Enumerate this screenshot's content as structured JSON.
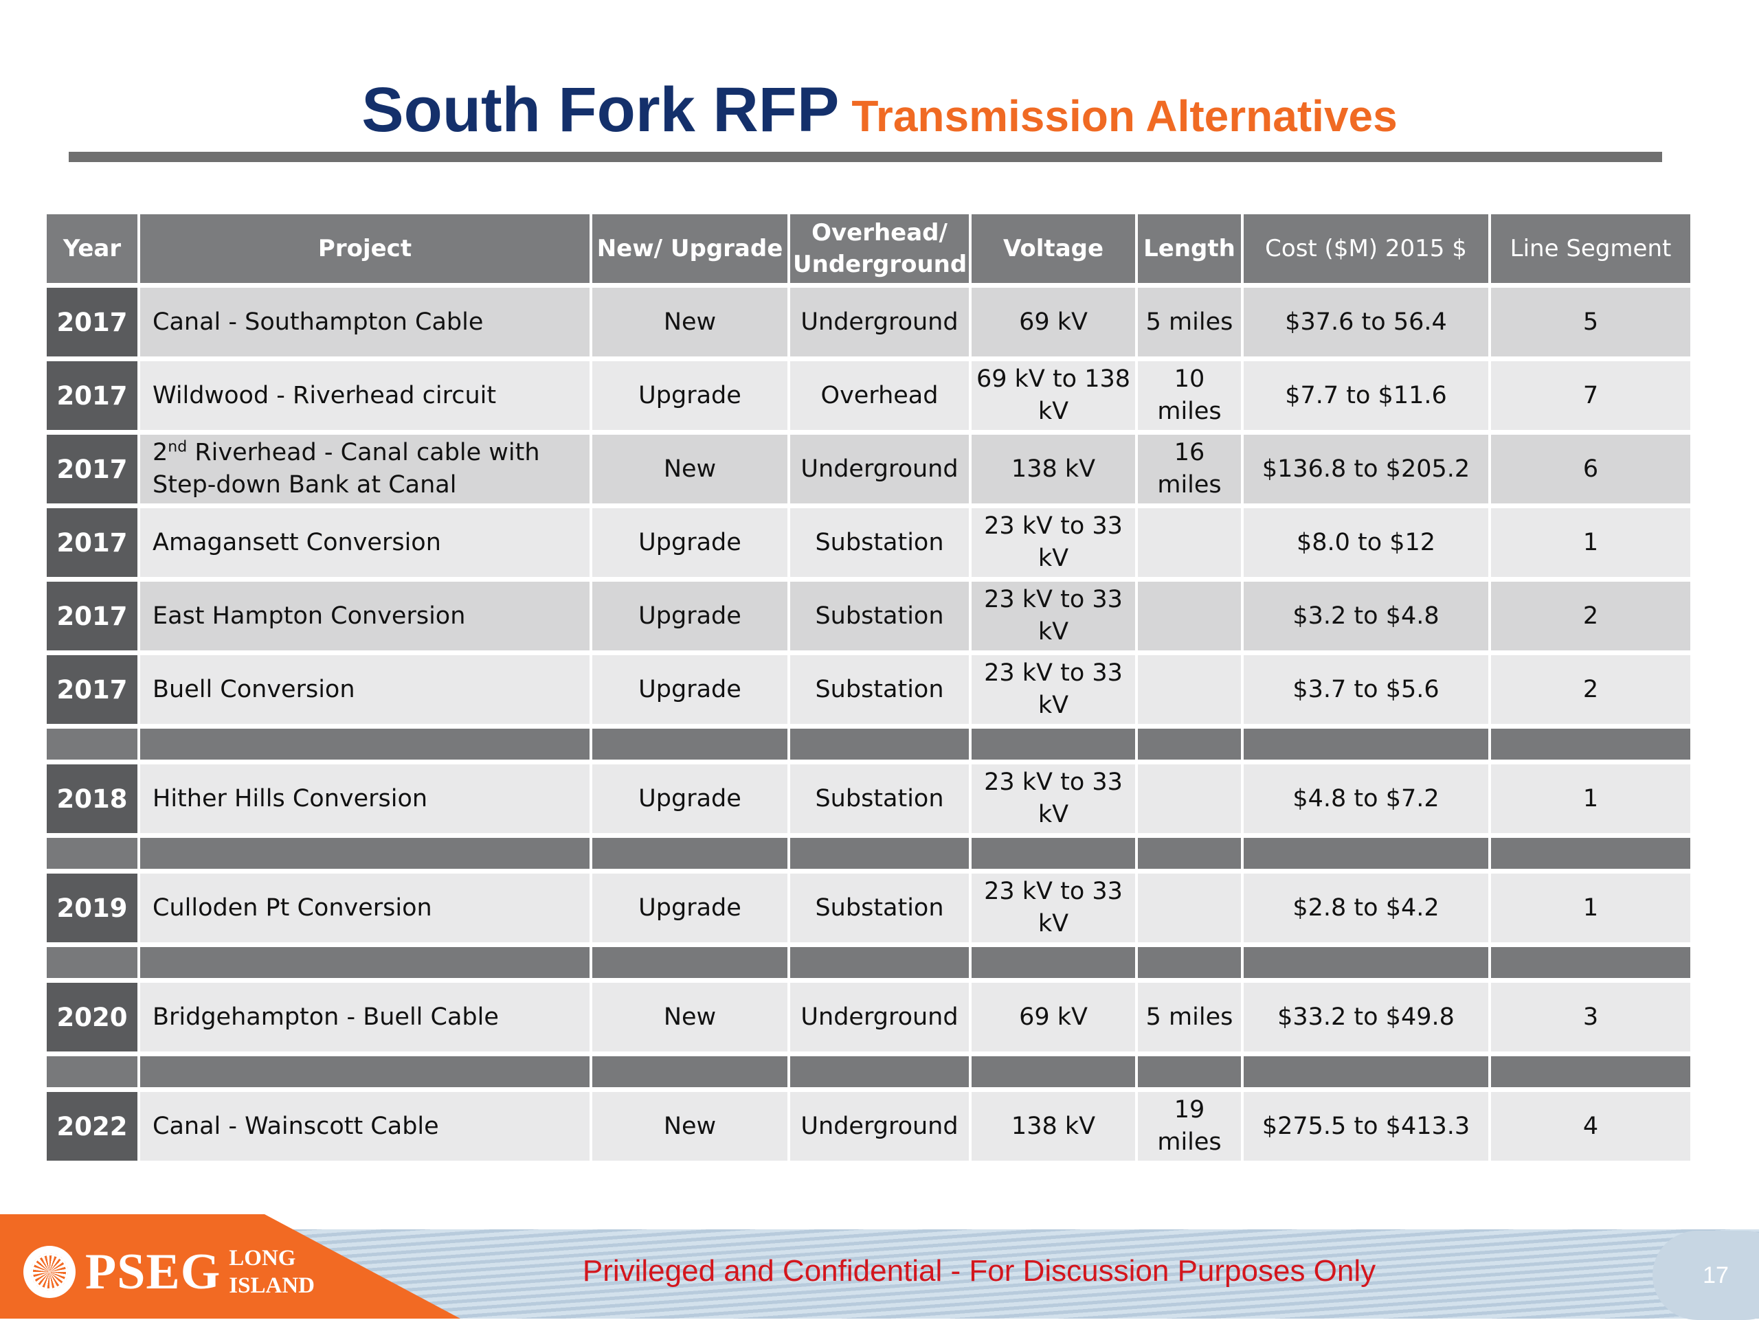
{
  "header": {
    "title": "South Fork RFP",
    "subtitle": "Transmission Alternatives"
  },
  "table": {
    "headers": {
      "year": "Year",
      "project": "Project",
      "new_upgrade": "New/ Upgrade",
      "overhead_line1": "Overhead/",
      "overhead_line2": "Underground",
      "voltage": "Voltage",
      "length": "Length",
      "cost": "Cost ($M) 2015 $",
      "segment": "Line Segment"
    },
    "rows": [
      {
        "year": "2017",
        "project": "Canal - Southampton Cable",
        "type": "New",
        "placement": "Underground",
        "voltage": "69 kV",
        "length": "5 miles",
        "cost": "$37.6  to 56.4",
        "segment": "5"
      },
      {
        "year": "2017",
        "project": "Wildwood - Riverhead circuit",
        "type": "Upgrade",
        "placement": "Overhead",
        "voltage": "69 kV to 138 kV",
        "length": "10 miles",
        "cost": "$7.7 to $11.6",
        "segment": "7"
      },
      {
        "year": "2017",
        "project_prefix": "2",
        "project_sup": "nd",
        "project_rest": " Riverhead -  Canal cable with Step-down Bank at Canal",
        "type": "New",
        "placement": "Underground",
        "voltage": "138 kV",
        "length": "16 miles",
        "cost": "$136.8 to $205.2",
        "segment": "6"
      },
      {
        "year": "2017",
        "project": "Amagansett Conversion",
        "type": "Upgrade",
        "placement": "Substation",
        "voltage": "23 kV to 33 kV",
        "length": "",
        "cost": "$8.0  to  $12",
        "segment": "1"
      },
      {
        "year": "2017",
        "project": "East Hampton Conversion",
        "type": "Upgrade",
        "placement": "Substation",
        "voltage": "23 kV to 33 kV",
        "length": "",
        "cost": "$3.2 to $4.8",
        "segment": "2"
      },
      {
        "year": "2017",
        "project": "Buell Conversion",
        "type": "Upgrade",
        "placement": "Substation",
        "voltage": "23 kV to 33 kV",
        "length": "",
        "cost": "$3.7  to $5.6",
        "segment": "2"
      },
      {
        "year": "2018",
        "project": "Hither Hills Conversion",
        "type": "Upgrade",
        "placement": "Substation",
        "voltage": "23 kV to 33 kV",
        "length": "",
        "cost": "$4.8  to $7.2",
        "segment": "1"
      },
      {
        "year": "2019",
        "project": "Culloden Pt Conversion",
        "type": "Upgrade",
        "placement": "Substation",
        "voltage": "23 kV to 33 kV",
        "length": "",
        "cost": "$2.8  to $4.2",
        "segment": "1"
      },
      {
        "year": "2020",
        "project": "Bridgehampton - Buell Cable",
        "type": "New",
        "placement": "Underground",
        "voltage": "69 kV",
        "length": "5 miles",
        "cost": "$33.2 to $49.8",
        "segment": "3"
      },
      {
        "year": "2022",
        "project": "Canal - Wainscott Cable",
        "type": "New",
        "placement": "Underground",
        "voltage": "138 kV",
        "length": "19 miles",
        "cost": "$275.5 to $413.3",
        "segment": "4"
      }
    ]
  },
  "footer": {
    "logo_word": "PSEG",
    "logo_line1": "LONG",
    "logo_line2": "ISLAND",
    "notice": "Privileged and Confidential - For Discussion Purposes Only",
    "page_number": "17"
  },
  "colors": {
    "title_navy": "#14306b",
    "subtitle_orange": "#f06a23",
    "header_gray": "#7b7c7e",
    "year_cell": "#5a5b5d",
    "brand_orange": "#f26a23",
    "notice_red": "#d3161d"
  },
  "icons": [
    "pseg-sun-logo-icon"
  ]
}
